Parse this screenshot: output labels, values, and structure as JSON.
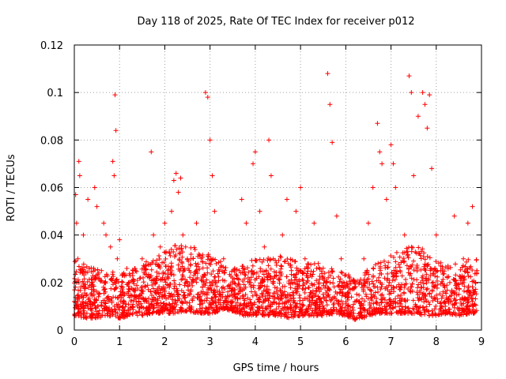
{
  "chart_data": {
    "type": "scatter",
    "title": "Day 118 of 2025, Rate Of TEC Index for receiver p012",
    "xlabel": "GPS time / hours",
    "ylabel": "ROTI / TECUs",
    "xlim": [
      0,
      9
    ],
    "ylim": [
      0,
      0.12
    ],
    "xticks": [
      "0",
      "1",
      "2",
      "3",
      "4",
      "5",
      "6",
      "7",
      "8",
      "9"
    ],
    "yticks": [
      "0",
      "0.02",
      "0.04",
      "0.06",
      "0.08",
      "0.1",
      "0.12"
    ],
    "grid": true,
    "marker": "+",
    "colors": {
      "series": "#ff0000",
      "axis": "#000000",
      "grid": "#a0a0a0"
    },
    "series": [
      {
        "name": "ROTI",
        "x": [
          0.0,
          0.03,
          0.05,
          0.08,
          0.1,
          0.12,
          0.15,
          0.2,
          0.25,
          0.3,
          0.35,
          0.4,
          0.45,
          0.5,
          0.55,
          0.6,
          0.65,
          0.7,
          0.75,
          0.8,
          0.85,
          0.88,
          0.9,
          0.92,
          0.95,
          1.0,
          1.05,
          1.1,
          1.2,
          1.3,
          1.4,
          1.5,
          1.6,
          1.7,
          1.75,
          1.8,
          1.9,
          2.0,
          2.1,
          2.15,
          2.2,
          2.25,
          2.3,
          2.35,
          2.4,
          2.5,
          2.6,
          2.7,
          2.8,
          2.9,
          2.95,
          3.0,
          3.05,
          3.1,
          3.2,
          3.3,
          3.4,
          3.5,
          3.6,
          3.7,
          3.8,
          3.9,
          3.95,
          4.0,
          4.1,
          4.2,
          4.3,
          4.35,
          4.4,
          4.5,
          4.6,
          4.7,
          4.8,
          4.9,
          5.0,
          5.1,
          5.2,
          5.3,
          5.4,
          5.5,
          5.6,
          5.65,
          5.7,
          5.8,
          5.9,
          6.0,
          6.1,
          6.2,
          6.3,
          6.4,
          6.5,
          6.6,
          6.7,
          6.75,
          6.8,
          6.9,
          7.0,
          7.05,
          7.1,
          7.2,
          7.3,
          7.4,
          7.45,
          7.5,
          7.6,
          7.7,
          7.75,
          7.8,
          7.85,
          7.9,
          8.0,
          8.1,
          8.2,
          8.3,
          8.4,
          8.5,
          8.6,
          8.7,
          8.8,
          8.9
        ],
        "y": [
          0.012,
          0.057,
          0.045,
          0.03,
          0.071,
          0.065,
          0.025,
          0.04,
          0.018,
          0.055,
          0.012,
          0.02,
          0.06,
          0.052,
          0.015,
          0.025,
          0.045,
          0.04,
          0.012,
          0.035,
          0.071,
          0.065,
          0.099,
          0.084,
          0.03,
          0.038,
          0.015,
          0.012,
          0.02,
          0.025,
          0.014,
          0.03,
          0.012,
          0.075,
          0.04,
          0.02,
          0.035,
          0.045,
          0.018,
          0.05,
          0.063,
          0.066,
          0.058,
          0.064,
          0.04,
          0.03,
          0.02,
          0.045,
          0.012,
          0.1,
          0.098,
          0.08,
          0.065,
          0.05,
          0.015,
          0.03,
          0.012,
          0.02,
          0.015,
          0.055,
          0.045,
          0.02,
          0.07,
          0.075,
          0.05,
          0.035,
          0.08,
          0.065,
          0.03,
          0.015,
          0.04,
          0.055,
          0.025,
          0.05,
          0.06,
          0.03,
          0.012,
          0.045,
          0.02,
          0.015,
          0.108,
          0.095,
          0.079,
          0.048,
          0.03,
          0.015,
          0.008,
          0.012,
          0.02,
          0.03,
          0.045,
          0.06,
          0.087,
          0.075,
          0.07,
          0.055,
          0.078,
          0.07,
          0.06,
          0.025,
          0.04,
          0.107,
          0.1,
          0.065,
          0.09,
          0.1,
          0.095,
          0.085,
          0.099,
          0.068,
          0.04,
          0.025,
          0.01,
          0.02,
          0.048,
          0.015,
          0.03,
          0.045,
          0.052,
          0.025
        ],
        "band": {
          "x": [
            0.0,
            0.25,
            0.5,
            0.75,
            1.0,
            1.25,
            1.5,
            1.75,
            2.0,
            2.25,
            2.5,
            2.75,
            3.0,
            3.25,
            3.5,
            3.75,
            4.0,
            4.25,
            4.5,
            4.75,
            5.0,
            5.25,
            5.5,
            5.75,
            6.0,
            6.25,
            6.5,
            6.75,
            7.0,
            7.25,
            7.5,
            7.75,
            8.0,
            8.25,
            8.5,
            8.75,
            8.9
          ],
          "low": [
            0.006,
            0.005,
            0.005,
            0.006,
            0.005,
            0.006,
            0.006,
            0.007,
            0.007,
            0.007,
            0.008,
            0.007,
            0.007,
            0.008,
            0.008,
            0.006,
            0.006,
            0.006,
            0.006,
            0.005,
            0.006,
            0.006,
            0.006,
            0.007,
            0.006,
            0.004,
            0.006,
            0.007,
            0.007,
            0.007,
            0.007,
            0.006,
            0.006,
            0.007,
            0.006,
            0.007,
            0.007
          ],
          "high": [
            0.03,
            0.028,
            0.026,
            0.024,
            0.026,
            0.026,
            0.028,
            0.03,
            0.034,
            0.036,
            0.036,
            0.034,
            0.032,
            0.03,
            0.026,
            0.028,
            0.03,
            0.03,
            0.032,
            0.03,
            0.03,
            0.028,
            0.028,
            0.026,
            0.024,
            0.022,
            0.026,
            0.03,
            0.032,
            0.034,
            0.036,
            0.034,
            0.03,
            0.028,
            0.028,
            0.03,
            0.03
          ]
        }
      }
    ]
  }
}
